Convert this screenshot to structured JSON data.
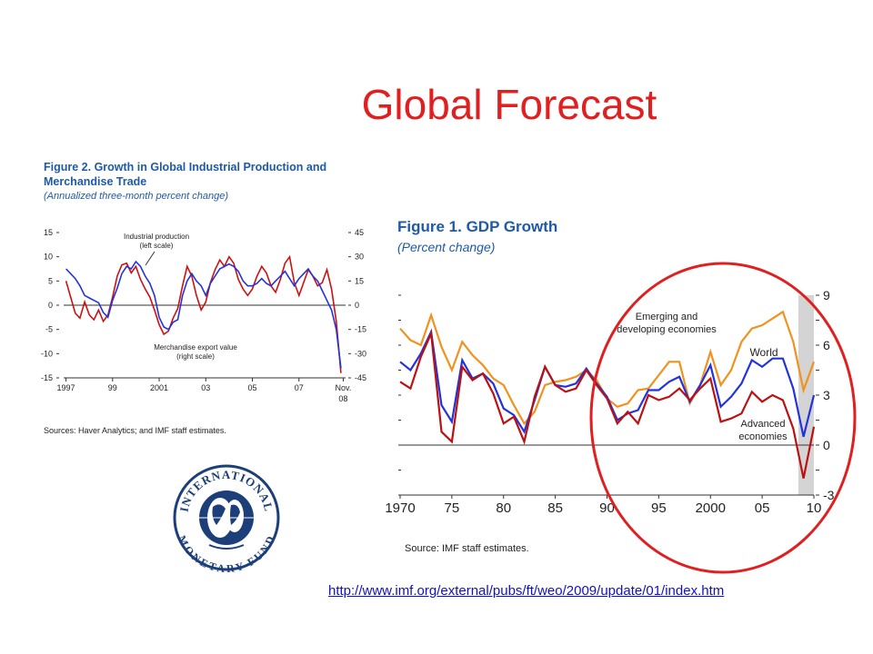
{
  "slide": {
    "title": "Global Forecast",
    "link": "http://www.imf.org/external/pubs/ft/weo/2009/update/01/index.htm",
    "logo_text_top": "INTERNATIONAL",
    "logo_text_bottom": "MONETARY FUND"
  },
  "chart_data": [
    {
      "type": "line",
      "title": "Figure 2.  Growth in Global Industrial Production and Merchandise Trade",
      "subtitle": "(Annualized three-month percent change)",
      "source": "Sources: Haver Analytics; and IMF staff estimates.",
      "xlabel": "",
      "ylabel": "",
      "x_tick_labels": [
        "1997",
        "99",
        "2001",
        "03",
        "05",
        "07",
        "Nov."
      ],
      "x_tick_labels_second_line": "08",
      "x_ticks": [
        1997,
        1999,
        2001,
        2003,
        2005,
        2007,
        2008.9
      ],
      "xlim": [
        1996.9,
        2009.0
      ],
      "ylim_left": [
        -15,
        15
      ],
      "y_ticks_left": [
        -15,
        -10,
        -5,
        0,
        5,
        10,
        15
      ],
      "ylim_right": [
        -45,
        45
      ],
      "y_ticks_right": [
        -45,
        -30,
        -15,
        0,
        15,
        30,
        45
      ],
      "annotations": [
        "Industrial production",
        "(left scale)",
        "Merchandise export value",
        "(right scale)"
      ],
      "colors": {
        "industrial": "#2233dd",
        "exports": "#cc1111"
      },
      "series": [
        {
          "axis": "left",
          "x": [
            1997.0,
            1997.2,
            1997.4,
            1997.6,
            1997.8,
            1998.0,
            1998.2,
            1998.4,
            1998.6,
            1998.8,
            1999.0,
            1999.2,
            1999.4,
            1999.6,
            1999.8,
            2000.0,
            2000.2,
            2000.4,
            2000.6,
            2000.8,
            2001.0,
            2001.2,
            2001.4,
            2001.6,
            2001.8,
            2002.0,
            2002.2,
            2002.4,
            2002.6,
            2002.8,
            2003.0,
            2003.2,
            2003.4,
            2003.6,
            2003.8,
            2004.0,
            2004.2,
            2004.4,
            2004.6,
            2004.8,
            2005.0,
            2005.2,
            2005.4,
            2005.6,
            2005.8,
            2006.0,
            2006.2,
            2006.4,
            2006.6,
            2006.8,
            2007.0,
            2007.2,
            2007.4,
            2007.6,
            2007.8,
            2008.0,
            2008.2,
            2008.4,
            2008.6,
            2008.8
          ],
          "values": [
            7.5,
            6.5,
            5.5,
            4.0,
            2.0,
            1.5,
            1.0,
            0.5,
            -1.5,
            -2.5,
            1.0,
            3.5,
            6.5,
            8.0,
            7.5,
            9.0,
            8.0,
            6.0,
            4.5,
            2.0,
            -2.5,
            -4.5,
            -5.0,
            -3.5,
            -3.0,
            2.0,
            5.0,
            6.5,
            5.0,
            4.0,
            2.0,
            4.5,
            6.0,
            7.5,
            8.0,
            8.5,
            8.0,
            7.0,
            5.0,
            4.0,
            4.0,
            4.5,
            5.5,
            4.5,
            4.0,
            5.0,
            6.0,
            7.0,
            5.5,
            4.0,
            5.5,
            6.5,
            7.5,
            6.0,
            5.0,
            3.0,
            1.0,
            -1.0,
            -5.0,
            -13.0
          ]
        },
        {
          "axis": "right",
          "x": [
            1997.0,
            1997.2,
            1997.4,
            1997.6,
            1997.8,
            1998.0,
            1998.2,
            1998.4,
            1998.6,
            1998.8,
            1999.0,
            1999.2,
            1999.4,
            1999.6,
            1999.8,
            2000.0,
            2000.2,
            2000.4,
            2000.6,
            2000.8,
            2001.0,
            2001.2,
            2001.4,
            2001.6,
            2001.8,
            2002.0,
            2002.2,
            2002.4,
            2002.6,
            2002.8,
            2003.0,
            2003.2,
            2003.4,
            2003.6,
            2003.8,
            2004.0,
            2004.2,
            2004.4,
            2004.6,
            2004.8,
            2005.0,
            2005.2,
            2005.4,
            2005.6,
            2005.8,
            2006.0,
            2006.2,
            2006.4,
            2006.6,
            2006.8,
            2007.0,
            2007.2,
            2007.4,
            2007.6,
            2007.8,
            2008.0,
            2008.2,
            2008.4,
            2008.6,
            2008.8
          ],
          "values": [
            15,
            5,
            -5,
            -8,
            2,
            -6,
            -9,
            -3,
            -10,
            -6,
            5,
            18,
            25,
            26,
            20,
            24,
            16,
            10,
            5,
            -3,
            -12,
            -18,
            -16,
            -8,
            -2,
            12,
            24,
            18,
            6,
            -3,
            2,
            14,
            22,
            28,
            24,
            30,
            26,
            16,
            10,
            6,
            10,
            18,
            24,
            20,
            12,
            8,
            16,
            26,
            30,
            14,
            6,
            14,
            22,
            18,
            12,
            14,
            22,
            10,
            -10,
            -42
          ]
        }
      ]
    },
    {
      "type": "line",
      "title": "Figure 1.  GDP Growth",
      "subtitle": "(Percent change)",
      "source": "Source: IMF staff estimates.",
      "xlabel": "",
      "ylabel": "",
      "x_tick_labels": [
        "1970",
        "75",
        "80",
        "85",
        "90",
        "95",
        "2000",
        "05",
        "10"
      ],
      "x_ticks": [
        1970,
        1975,
        1980,
        1985,
        1990,
        1995,
        2000,
        2005,
        2010
      ],
      "xlim": [
        1970,
        2010
      ],
      "ylim": [
        -3,
        9
      ],
      "y_ticks": [
        -3,
        0,
        3,
        6,
        9
      ],
      "shaded_region": [
        2008.5,
        2010
      ],
      "colors": {
        "emerging": "#f0921e",
        "world": "#2233dd",
        "advanced": "#bb1111",
        "circle": "#e02020"
      },
      "annotations": [
        "Emerging and",
        "developing economies",
        "World",
        "Advanced",
        "economies"
      ],
      "x": [
        1970,
        1971,
        1972,
        1973,
        1974,
        1975,
        1976,
        1977,
        1978,
        1979,
        1980,
        1981,
        1982,
        1983,
        1984,
        1985,
        1986,
        1987,
        1988,
        1989,
        1990,
        1991,
        1992,
        1993,
        1994,
        1995,
        1996,
        1997,
        1998,
        1999,
        2000,
        2001,
        2002,
        2003,
        2004,
        2005,
        2006,
        2007,
        2008,
        2009,
        2010
      ],
      "series": [
        {
          "name": "Emerging and developing economies",
          "values": [
            7.0,
            6.3,
            6.0,
            7.8,
            5.9,
            4.5,
            6.2,
            5.4,
            4.8,
            4.0,
            3.6,
            2.4,
            1.3,
            2.0,
            3.6,
            3.8,
            3.9,
            4.1,
            4.5,
            3.9,
            2.8,
            2.3,
            2.5,
            3.3,
            3.4,
            4.2,
            5.0,
            5.0,
            2.5,
            3.6,
            5.6,
            3.6,
            4.5,
            6.2,
            7.0,
            7.2,
            7.6,
            8.0,
            6.2,
            3.3,
            5.0
          ]
        },
        {
          "name": "World",
          "values": [
            5.0,
            4.5,
            5.5,
            6.8,
            2.4,
            1.4,
            5.1,
            4.0,
            4.3,
            3.7,
            2.2,
            1.8,
            0.8,
            2.7,
            4.7,
            3.6,
            3.5,
            3.7,
            4.6,
            3.7,
            2.9,
            1.5,
            1.9,
            2.1,
            3.3,
            3.3,
            3.8,
            4.1,
            2.6,
            3.6,
            4.8,
            2.3,
            2.9,
            3.7,
            5.1,
            4.7,
            5.2,
            5.2,
            3.4,
            0.5,
            3.0
          ]
        },
        {
          "name": "Advanced economies",
          "values": [
            3.8,
            3.4,
            5.3,
            6.7,
            0.8,
            0.2,
            4.7,
            3.9,
            4.3,
            3.1,
            1.3,
            1.7,
            0.2,
            2.9,
            4.7,
            3.6,
            3.2,
            3.4,
            4.5,
            3.6,
            2.8,
            1.3,
            2.0,
            1.3,
            3.0,
            2.7,
            2.9,
            3.4,
            2.7,
            3.4,
            4.0,
            1.4,
            1.6,
            1.9,
            3.2,
            2.6,
            3.0,
            2.7,
            1.0,
            -2.0,
            1.1
          ]
        }
      ]
    }
  ]
}
